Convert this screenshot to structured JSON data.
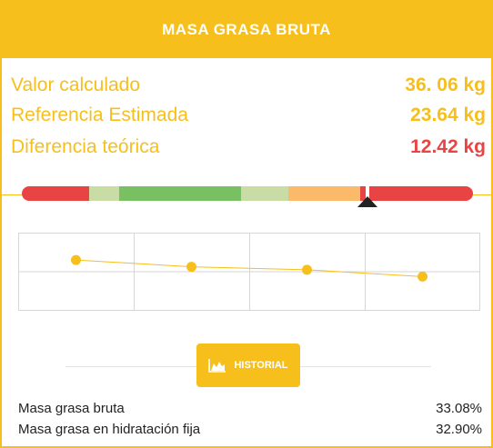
{
  "header": {
    "title": "MASA GRASA BRUTA"
  },
  "metrics": [
    {
      "label": "Valor calculado",
      "value": "36. 06 kg"
    },
    {
      "label": "Referencia Estimada",
      "value": "23.64 kg"
    },
    {
      "label": "Diferencia teórica",
      "value": "12.42 kg"
    }
  ],
  "range_bar": {
    "segments": [
      {
        "fraction": 0.15,
        "color": "#e94444"
      },
      {
        "fraction": 0.065,
        "color": "#c9dca5"
      },
      {
        "fraction": 0.27,
        "color": "#78c062"
      },
      {
        "fraction": 0.105,
        "color": "#c9dca5"
      },
      {
        "fraction": 0.16,
        "color": "#fbb96a"
      },
      {
        "fraction": 0.25,
        "color": "#e94444"
      }
    ],
    "marker_position": 0.765,
    "marker_color": "#222222"
  },
  "chart_data": {
    "type": "line",
    "x": [
      1,
      2,
      3,
      4
    ],
    "series": [
      {
        "values": [
          0.72,
          0.65,
          0.62,
          0.55
        ],
        "color": "#f6bf1c"
      }
    ],
    "ylim": [
      0.2,
      1.0
    ],
    "grid": true
  },
  "history_button": {
    "label": "HISTORIAL",
    "icon": "area-chart-icon"
  },
  "summary": [
    {
      "label": "Masa grasa bruta",
      "value": "33.08%"
    },
    {
      "label": "Masa grasa en hidratación fija",
      "value": "32.90%"
    }
  ],
  "colors": {
    "accent": "#f6bf1c",
    "danger": "#e94444",
    "text": "#222222"
  }
}
